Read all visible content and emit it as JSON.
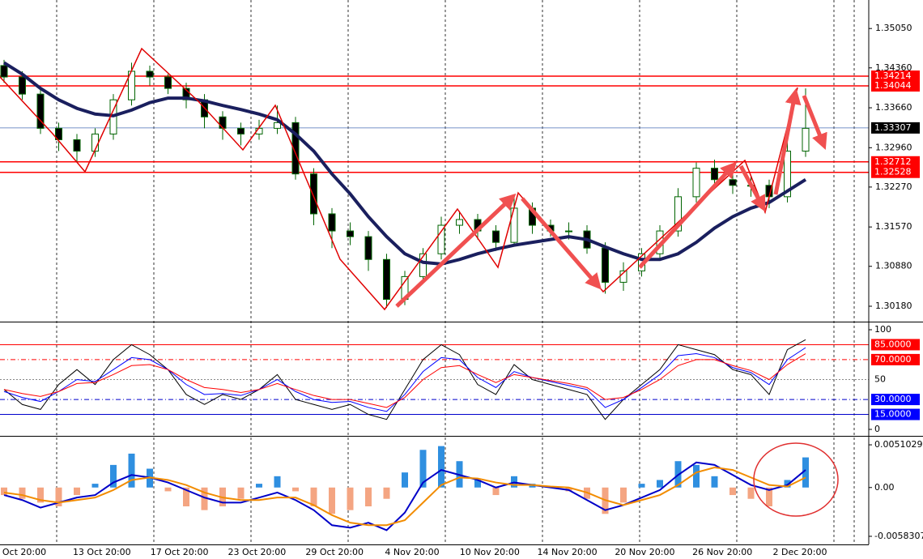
{
  "chart_data": [
    {
      "type": "candlestick",
      "open": [
        1.344,
        1.342,
        1.339,
        1.333,
        1.331,
        1.329,
        1.332,
        1.338,
        1.343,
        1.342,
        1.34,
        1.338,
        1.335,
        1.333,
        1.332,
        1.333,
        1.334,
        1.325,
        1.318,
        1.315,
        1.314,
        1.31,
        1.303,
        1.307,
        1.311,
        1.316,
        1.317,
        1.315,
        1.313,
        1.319,
        1.316,
        1.315,
        1.315,
        1.312,
        1.306,
        1.308,
        1.311,
        1.315,
        1.321,
        1.326,
        1.324,
        1.323,
        1.323,
        1.321,
        1.329
      ],
      "high": [
        1.345,
        1.343,
        1.34,
        1.334,
        1.332,
        1.333,
        1.339,
        1.3445,
        1.344,
        1.3425,
        1.341,
        1.339,
        1.336,
        1.334,
        1.3345,
        1.337,
        1.335,
        1.326,
        1.319,
        1.3165,
        1.315,
        1.311,
        1.308,
        1.312,
        1.3175,
        1.3185,
        1.318,
        1.316,
        1.321,
        1.32,
        1.317,
        1.3165,
        1.316,
        1.313,
        1.3095,
        1.312,
        1.316,
        1.3225,
        1.327,
        1.3275,
        1.3255,
        1.3245,
        1.324,
        1.331,
        1.34
      ],
      "low": [
        1.341,
        1.338,
        1.332,
        1.329,
        1.327,
        1.328,
        1.331,
        1.337,
        1.3405,
        1.339,
        1.3365,
        1.333,
        1.331,
        1.33,
        1.331,
        1.332,
        1.324,
        1.316,
        1.312,
        1.3125,
        1.308,
        1.3015,
        1.302,
        1.306,
        1.31,
        1.3145,
        1.3135,
        1.3115,
        1.3125,
        1.3145,
        1.314,
        1.3135,
        1.311,
        1.304,
        1.3045,
        1.307,
        1.31,
        1.314,
        1.32,
        1.3225,
        1.3215,
        1.321,
        1.319,
        1.32,
        1.328
      ],
      "close": [
        1.342,
        1.339,
        1.333,
        1.331,
        1.329,
        1.332,
        1.338,
        1.343,
        1.342,
        1.34,
        1.338,
        1.335,
        1.333,
        1.332,
        1.333,
        1.334,
        1.325,
        1.318,
        1.315,
        1.314,
        1.31,
        1.303,
        1.307,
        1.311,
        1.316,
        1.317,
        1.315,
        1.313,
        1.319,
        1.316,
        1.315,
        1.315,
        1.312,
        1.306,
        1.308,
        1.311,
        1.315,
        1.321,
        1.326,
        1.324,
        1.323,
        1.323,
        1.321,
        1.329,
        1.333
      ],
      "up_color": "#ffffff",
      "down_color": "#000000",
      "wick_color": "#006400",
      "ma": {
        "color": "#1a1f5e",
        "values": [
          1.3445,
          1.3425,
          1.34,
          1.338,
          1.3365,
          1.3355,
          1.3352,
          1.3362,
          1.3375,
          1.3383,
          1.3383,
          1.3378,
          1.337,
          1.3363,
          1.3355,
          1.3345,
          1.332,
          1.329,
          1.325,
          1.3215,
          1.3175,
          1.314,
          1.311,
          1.3095,
          1.3092,
          1.31,
          1.311,
          1.3118,
          1.3125,
          1.313,
          1.3135,
          1.314,
          1.3135,
          1.3122,
          1.311,
          1.31,
          1.31,
          1.311,
          1.313,
          1.3155,
          1.3175,
          1.319,
          1.32,
          1.322,
          1.324
        ]
      },
      "ylim": [
        1.2991,
        1.3555
      ],
      "yticks": [
        {
          "value": 1.3505,
          "label": "1.35050"
        },
        {
          "value": 1.3436,
          "label": "1.34360"
        },
        {
          "value": 1.3366,
          "label": "1.33660"
        },
        {
          "value": 1.3296,
          "label": "1.32960"
        },
        {
          "value": 1.3227,
          "label": "1.32270"
        },
        {
          "value": 1.3157,
          "label": "1.31570"
        },
        {
          "value": 1.3088,
          "label": "1.30880"
        },
        {
          "value": 1.3018,
          "label": "1.30180"
        }
      ],
      "levels": [
        {
          "value": 1.34214,
          "label": "1.34214",
          "color": "#ff0000"
        },
        {
          "value": 1.34044,
          "label": "1.34044",
          "color": "#ff0000"
        },
        {
          "value": 1.33307,
          "label": "1.33307",
          "color": "#4a6fb5"
        },
        {
          "value": 1.32712,
          "label": "1.32712",
          "color": "#ff0000"
        },
        {
          "value": 1.32528,
          "label": "1.32528",
          "color": "#ff0000"
        }
      ],
      "x_labels": [
        "Oct 20:00",
        "13 Oct 20:00",
        "17 Oct 20:00",
        "23 Oct 20:00",
        "29 Oct 20:00",
        "4 Nov 20:00",
        "10 Nov 20:00",
        "14 Nov 20:00",
        "20 Nov 20:00",
        "26 Nov 20:00",
        "2 Dec 20:00"
      ]
    },
    {
      "type": "line",
      "series": [
        {
          "color": "#000000",
          "values": [
            40,
            25,
            20,
            45,
            60,
            45,
            70,
            85,
            75,
            60,
            35,
            25,
            35,
            30,
            40,
            55,
            30,
            25,
            20,
            25,
            15,
            10,
            40,
            70,
            85,
            75,
            45,
            35,
            65,
            50,
            45,
            40,
            35,
            10,
            30,
            45,
            60,
            85,
            80,
            75,
            60,
            55,
            35,
            80,
            90
          ]
        },
        {
          "color": "#0000ff",
          "values": [
            38,
            32,
            28,
            38,
            50,
            48,
            60,
            72,
            70,
            60,
            45,
            35,
            36,
            34,
            40,
            50,
            38,
            30,
            27,
            28,
            22,
            18,
            35,
            58,
            72,
            70,
            52,
            42,
            58,
            52,
            48,
            44,
            40,
            22,
            30,
            42,
            55,
            74,
            76,
            72,
            62,
            57,
            45,
            70,
            82
          ]
        },
        {
          "color": "#ff0000",
          "values": [
            40,
            36,
            33,
            38,
            46,
            47,
            55,
            64,
            65,
            60,
            50,
            42,
            40,
            37,
            40,
            46,
            40,
            34,
            30,
            30,
            26,
            22,
            32,
            50,
            62,
            64,
            55,
            47,
            55,
            52,
            49,
            46,
            42,
            30,
            32,
            40,
            50,
            64,
            70,
            70,
            64,
            59,
            50,
            65,
            76
          ]
        }
      ],
      "ylim": [
        -5.7,
        106.5
      ],
      "yticks": [
        100,
        {
          "value": 85,
          "label": "85.0000"
        },
        {
          "value": 70,
          "label": "70.0000"
        },
        50,
        {
          "value": 30,
          "label": "30.0000"
        },
        {
          "value": 15,
          "label": "15.0000"
        },
        0
      ]
    },
    {
      "type": "bar",
      "values": [
        -0.0009,
        -0.00135,
        -0.0018,
        -0.00225,
        -0.0009,
        0.00045,
        0.0027,
        0.00405,
        0.00225,
        -0.00045,
        -0.00225,
        -0.0027,
        -0.00225,
        -0.00135,
        0.00045,
        0.00135,
        -0.00045,
        -0.00225,
        -0.00315,
        -0.0027,
        -0.00225,
        -0.00135,
        0.0018,
        0.0045,
        0.00495,
        0.00315,
        0.0009,
        -0.0009,
        0.00135,
        0.00045,
        0,
        -0.00045,
        -0.00135,
        -0.00315,
        -0.0018,
        0.00045,
        0.0009,
        0.00315,
        0.0027,
        0.00135,
        -0.0009,
        -0.00135,
        -0.00225,
        0.0009,
        0.0036
      ],
      "pos_color": "#2f8fe0",
      "neg_color": "#f4a582",
      "series": [
        {
          "color": "#0000c8",
          "values": [
            -0.0009,
            -0.0015,
            -0.0024,
            -0.0018,
            -0.0012,
            -0.0009,
            0.0006,
            0.0015,
            0.0012,
            0.0006,
            -0.0003,
            -0.0012,
            -0.0018,
            -0.0018,
            -0.0012,
            -0.0006,
            -0.0015,
            -0.0027,
            -0.0045,
            -0.0048,
            -0.0042,
            -0.0051,
            -0.003,
            0.0006,
            0.0021,
            0.0015,
            0.0009,
            0,
            0.0006,
            0.0003,
            0,
            -0.0003,
            -0.0015,
            -0.0027,
            -0.0021,
            -0.0012,
            -0.0003,
            0.0015,
            0.003,
            0.0027,
            0.0015,
            0.0003,
            -0.0003,
            0.0003,
            0.0021
          ]
        },
        {
          "color": "#f28c00",
          "values": [
            -0.0006,
            -0.0009,
            -0.0015,
            -0.0018,
            -0.0015,
            -0.0012,
            -0.0003,
            0.0009,
            0.0012,
            0.0009,
            0.0003,
            -0.0006,
            -0.0012,
            -0.0015,
            -0.0015,
            -0.0012,
            -0.0012,
            -0.0021,
            -0.0033,
            -0.0042,
            -0.0045,
            -0.0045,
            -0.0039,
            -0.0018,
            0.0003,
            0.0012,
            0.00108,
            0.0006,
            0.0003,
            0.0003,
            0.00012,
            0,
            -0.0006,
            -0.0015,
            -0.0021,
            -0.0015,
            -0.0009,
            0.0003,
            0.0018,
            0.0024,
            0.0021,
            0.0012,
            0.0003,
            0.00012,
            0.0012
          ]
        }
      ],
      "ylim": [
        -0.0068,
        0.00598
      ],
      "yticks": [
        {
          "value": 0.0051029,
          "label": "0.0051029"
        },
        {
          "value": 0,
          "label": "0.00"
        },
        {
          "value": -0.0058307,
          "label": "-0.0058307"
        }
      ]
    }
  ]
}
